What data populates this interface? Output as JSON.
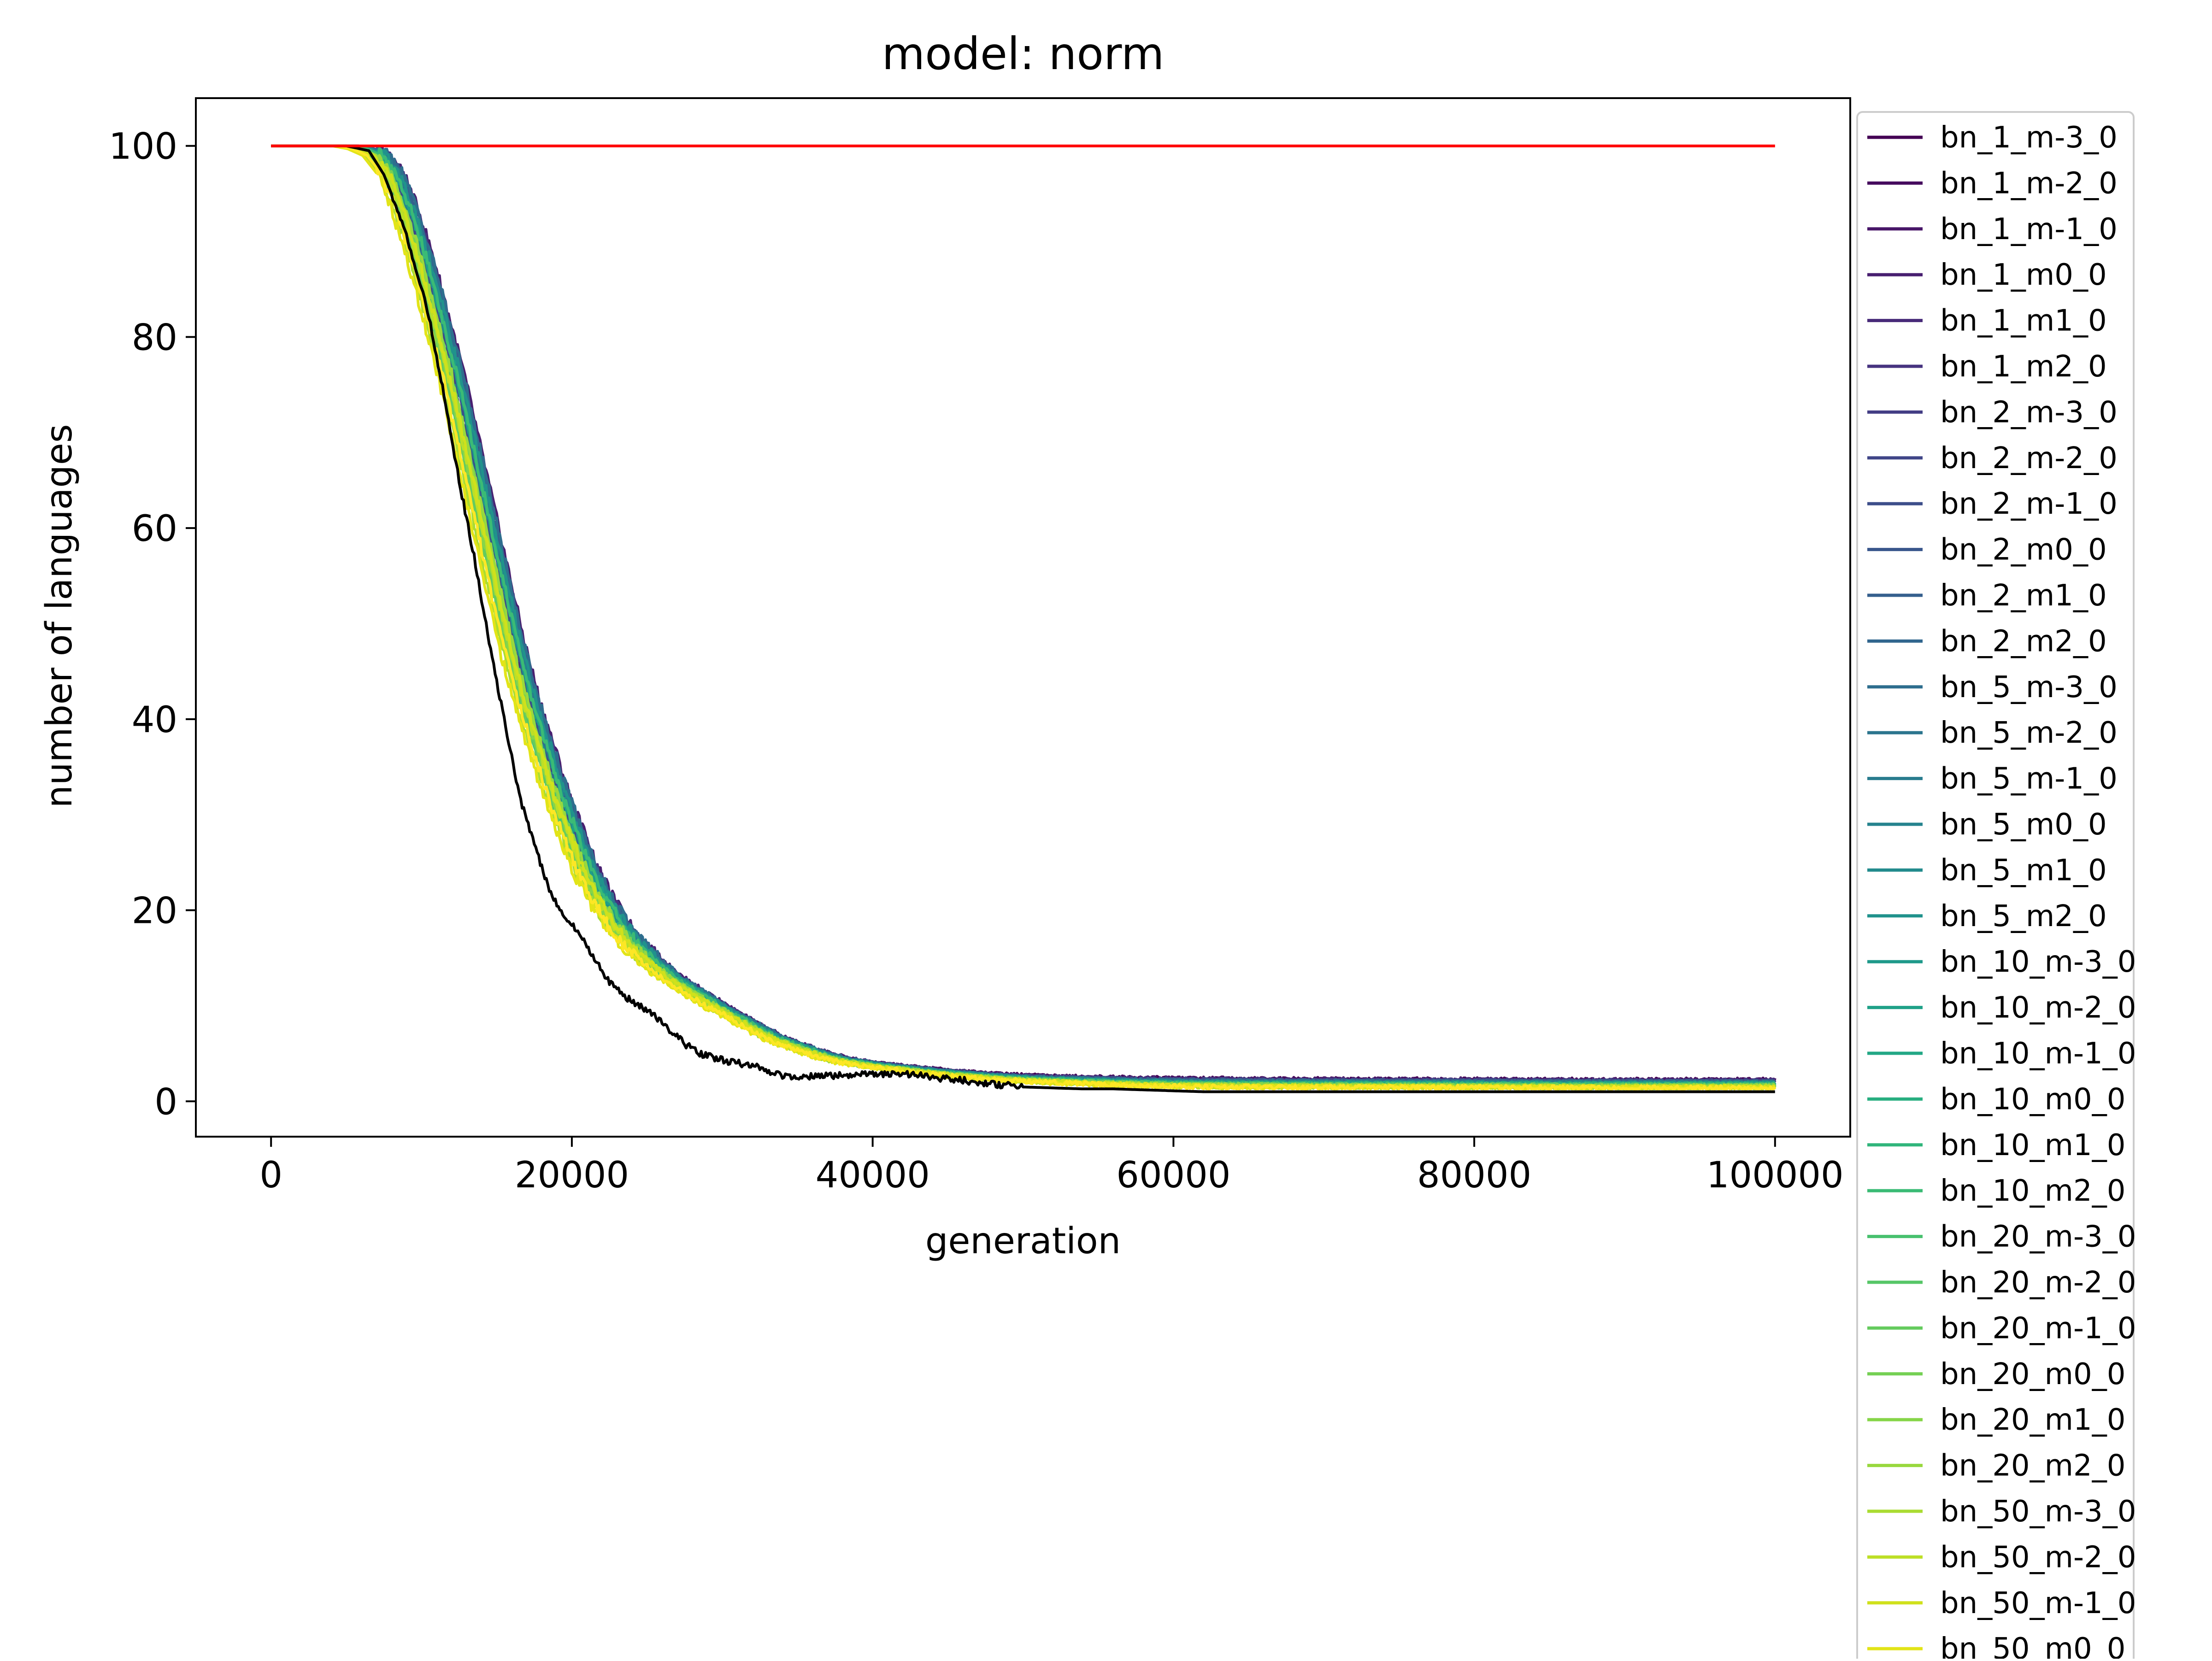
{
  "chart_data": {
    "type": "line",
    "title": "model: norm",
    "xlabel": "generation",
    "ylabel": "number of languages",
    "xlim": [
      -5000,
      105000
    ],
    "ylim": [
      -3.7,
      105
    ],
    "xticks": [
      0,
      20000,
      40000,
      60000,
      80000,
      100000
    ],
    "xtick_labels": [
      "0",
      "20000",
      "40000",
      "60000",
      "80000",
      "100000"
    ],
    "yticks": [
      0,
      20,
      40,
      60,
      80,
      100
    ],
    "ytick_labels": [
      "0",
      "20",
      "40",
      "60",
      "80",
      "100"
    ],
    "grid": false,
    "legend_position": "outside-right",
    "colormap": "viridis",
    "series": [
      {
        "name": "bn_1_m-3_0",
        "color": "#440154"
      },
      {
        "name": "bn_1_m-2_0",
        "color": "#460b5e"
      },
      {
        "name": "bn_1_m-1_0",
        "color": "#481668"
      },
      {
        "name": "bn_1_m0_0",
        "color": "#481f70"
      },
      {
        "name": "bn_1_m1_0",
        "color": "#472a79"
      },
      {
        "name": "bn_1_m2_0",
        "color": "#46337f"
      },
      {
        "name": "bn_2_m-3_0",
        "color": "#433d84"
      },
      {
        "name": "bn_2_m-2_0",
        "color": "#404688"
      },
      {
        "name": "bn_2_m-1_0",
        "color": "#3d4e8a"
      },
      {
        "name": "bn_2_m0_0",
        "color": "#39568c"
      },
      {
        "name": "bn_2_m1_0",
        "color": "#355f8d"
      },
      {
        "name": "bn_2_m2_0",
        "color": "#31668e"
      },
      {
        "name": "bn_5_m-3_0",
        "color": "#2e6e8e"
      },
      {
        "name": "bn_5_m-2_0",
        "color": "#2b758e"
      },
      {
        "name": "bn_5_m-1_0",
        "color": "#287c8e"
      },
      {
        "name": "bn_5_m0_0",
        "color": "#25838e"
      },
      {
        "name": "bn_5_m1_0",
        "color": "#228b8d"
      },
      {
        "name": "bn_5_m2_0",
        "color": "#20928c"
      },
      {
        "name": "bn_10_m-3_0",
        "color": "#1f998a"
      },
      {
        "name": "bn_10_m-2_0",
        "color": "#1fa188"
      },
      {
        "name": "bn_10_m-1_0",
        "color": "#22a785"
      },
      {
        "name": "bn_10_m0_0",
        "color": "#28ae80"
      },
      {
        "name": "bn_10_m1_0",
        "color": "#31b57b"
      },
      {
        "name": "bn_10_m2_0",
        "color": "#3bbb75"
      },
      {
        "name": "bn_20_m-3_0",
        "color": "#48c16e"
      },
      {
        "name": "bn_20_m-2_0",
        "color": "#56c667"
      },
      {
        "name": "bn_20_m-1_0",
        "color": "#65cb5e"
      },
      {
        "name": "bn_20_m0_0",
        "color": "#75d054"
      },
      {
        "name": "bn_20_m1_0",
        "color": "#86d549"
      },
      {
        "name": "bn_20_m2_0",
        "color": "#98d83e"
      },
      {
        "name": "bn_50_m-3_0",
        "color": "#aadc32"
      },
      {
        "name": "bn_50_m-2_0",
        "color": "#bddf26"
      },
      {
        "name": "bn_50_m-1_0",
        "color": "#d0e11c"
      },
      {
        "name": "bn_50_m0_0",
        "color": "#e2e418"
      },
      {
        "name": "",
        "color": "#fde725"
      },
      {
        "name": "",
        "color": "#000000"
      },
      {
        "name": "",
        "color": "#ff0000"
      }
    ],
    "red_line": {
      "x": [
        0,
        100000
      ],
      "y": [
        100,
        100
      ]
    },
    "black_line": {
      "x": [
        0,
        3000,
        5000,
        6500,
        7500,
        8500,
        9500,
        10500,
        11500,
        12500,
        13500,
        14500,
        15500,
        16500,
        17500,
        18500,
        19500,
        20500,
        21500,
        22500,
        23500,
        24500,
        25500,
        26500,
        27500,
        28500,
        29500,
        31000,
        32500,
        34000,
        36000,
        38000,
        40000,
        42000,
        44000,
        46000,
        48000,
        50000,
        52000,
        54000,
        56000,
        58000,
        60000,
        62000,
        70000,
        80000,
        90000,
        100000
      ],
      "y": [
        100,
        100,
        100,
        99.5,
        97,
        93,
        88,
        82,
        74,
        65,
        57,
        48,
        40,
        32,
        27,
        22,
        19.5,
        17.5,
        15,
        12.5,
        11,
        10,
        9,
        7.5,
        6,
        5,
        4.5,
        4,
        3.5,
        2.7,
        2.6,
        2.7,
        2.8,
        2.9,
        2.5,
        2.2,
        1.8,
        1.5,
        1.4,
        1.3,
        1.3,
        1.2,
        1.1,
        1.0,
        1.0,
        1.0,
        1.0,
        1.0
      ]
    },
    "bundle_curve": {
      "x": [
        0,
        4000,
        5500,
        6500,
        7500,
        8500,
        9500,
        10500,
        11500,
        12500,
        13500,
        14500,
        15500,
        16500,
        17500,
        18500,
        19500,
        20500,
        21500,
        22500,
        23500,
        24500,
        25500,
        27000,
        28500,
        30000,
        32000,
        34000,
        36000,
        38000,
        40000,
        43000,
        46000,
        50000,
        55000,
        60000,
        65000,
        70000,
        80000,
        90000,
        100000
      ],
      "y": [
        100,
        100,
        100,
        99.7,
        99,
        97,
        93,
        88,
        82,
        76,
        69,
        62,
        55,
        48,
        42,
        37,
        32,
        28,
        24,
        21,
        18.5,
        16.5,
        15,
        13,
        11.5,
        10,
        8.5,
        7,
        6,
        5,
        4.5,
        4,
        3.5,
        3,
        2.7,
        2.5,
        2.3,
        2.2,
        2.1,
        2.0,
        2.0
      ]
    }
  }
}
